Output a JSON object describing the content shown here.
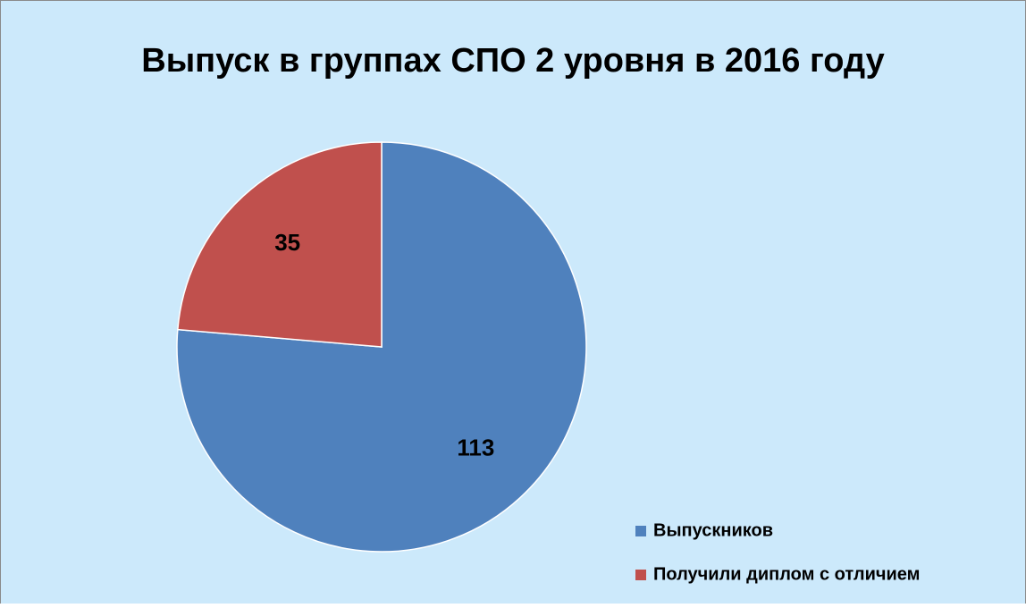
{
  "chart_data": {
    "type": "pie",
    "title": "Выпуск в группах СПО 2 уровня в 2016 году",
    "categories": [
      "Выпускников",
      "Получили диплом с отличием"
    ],
    "values": [
      113,
      35
    ],
    "colors": [
      "#4f81bd",
      "#c0504d"
    ],
    "legend": "bottom-right"
  }
}
